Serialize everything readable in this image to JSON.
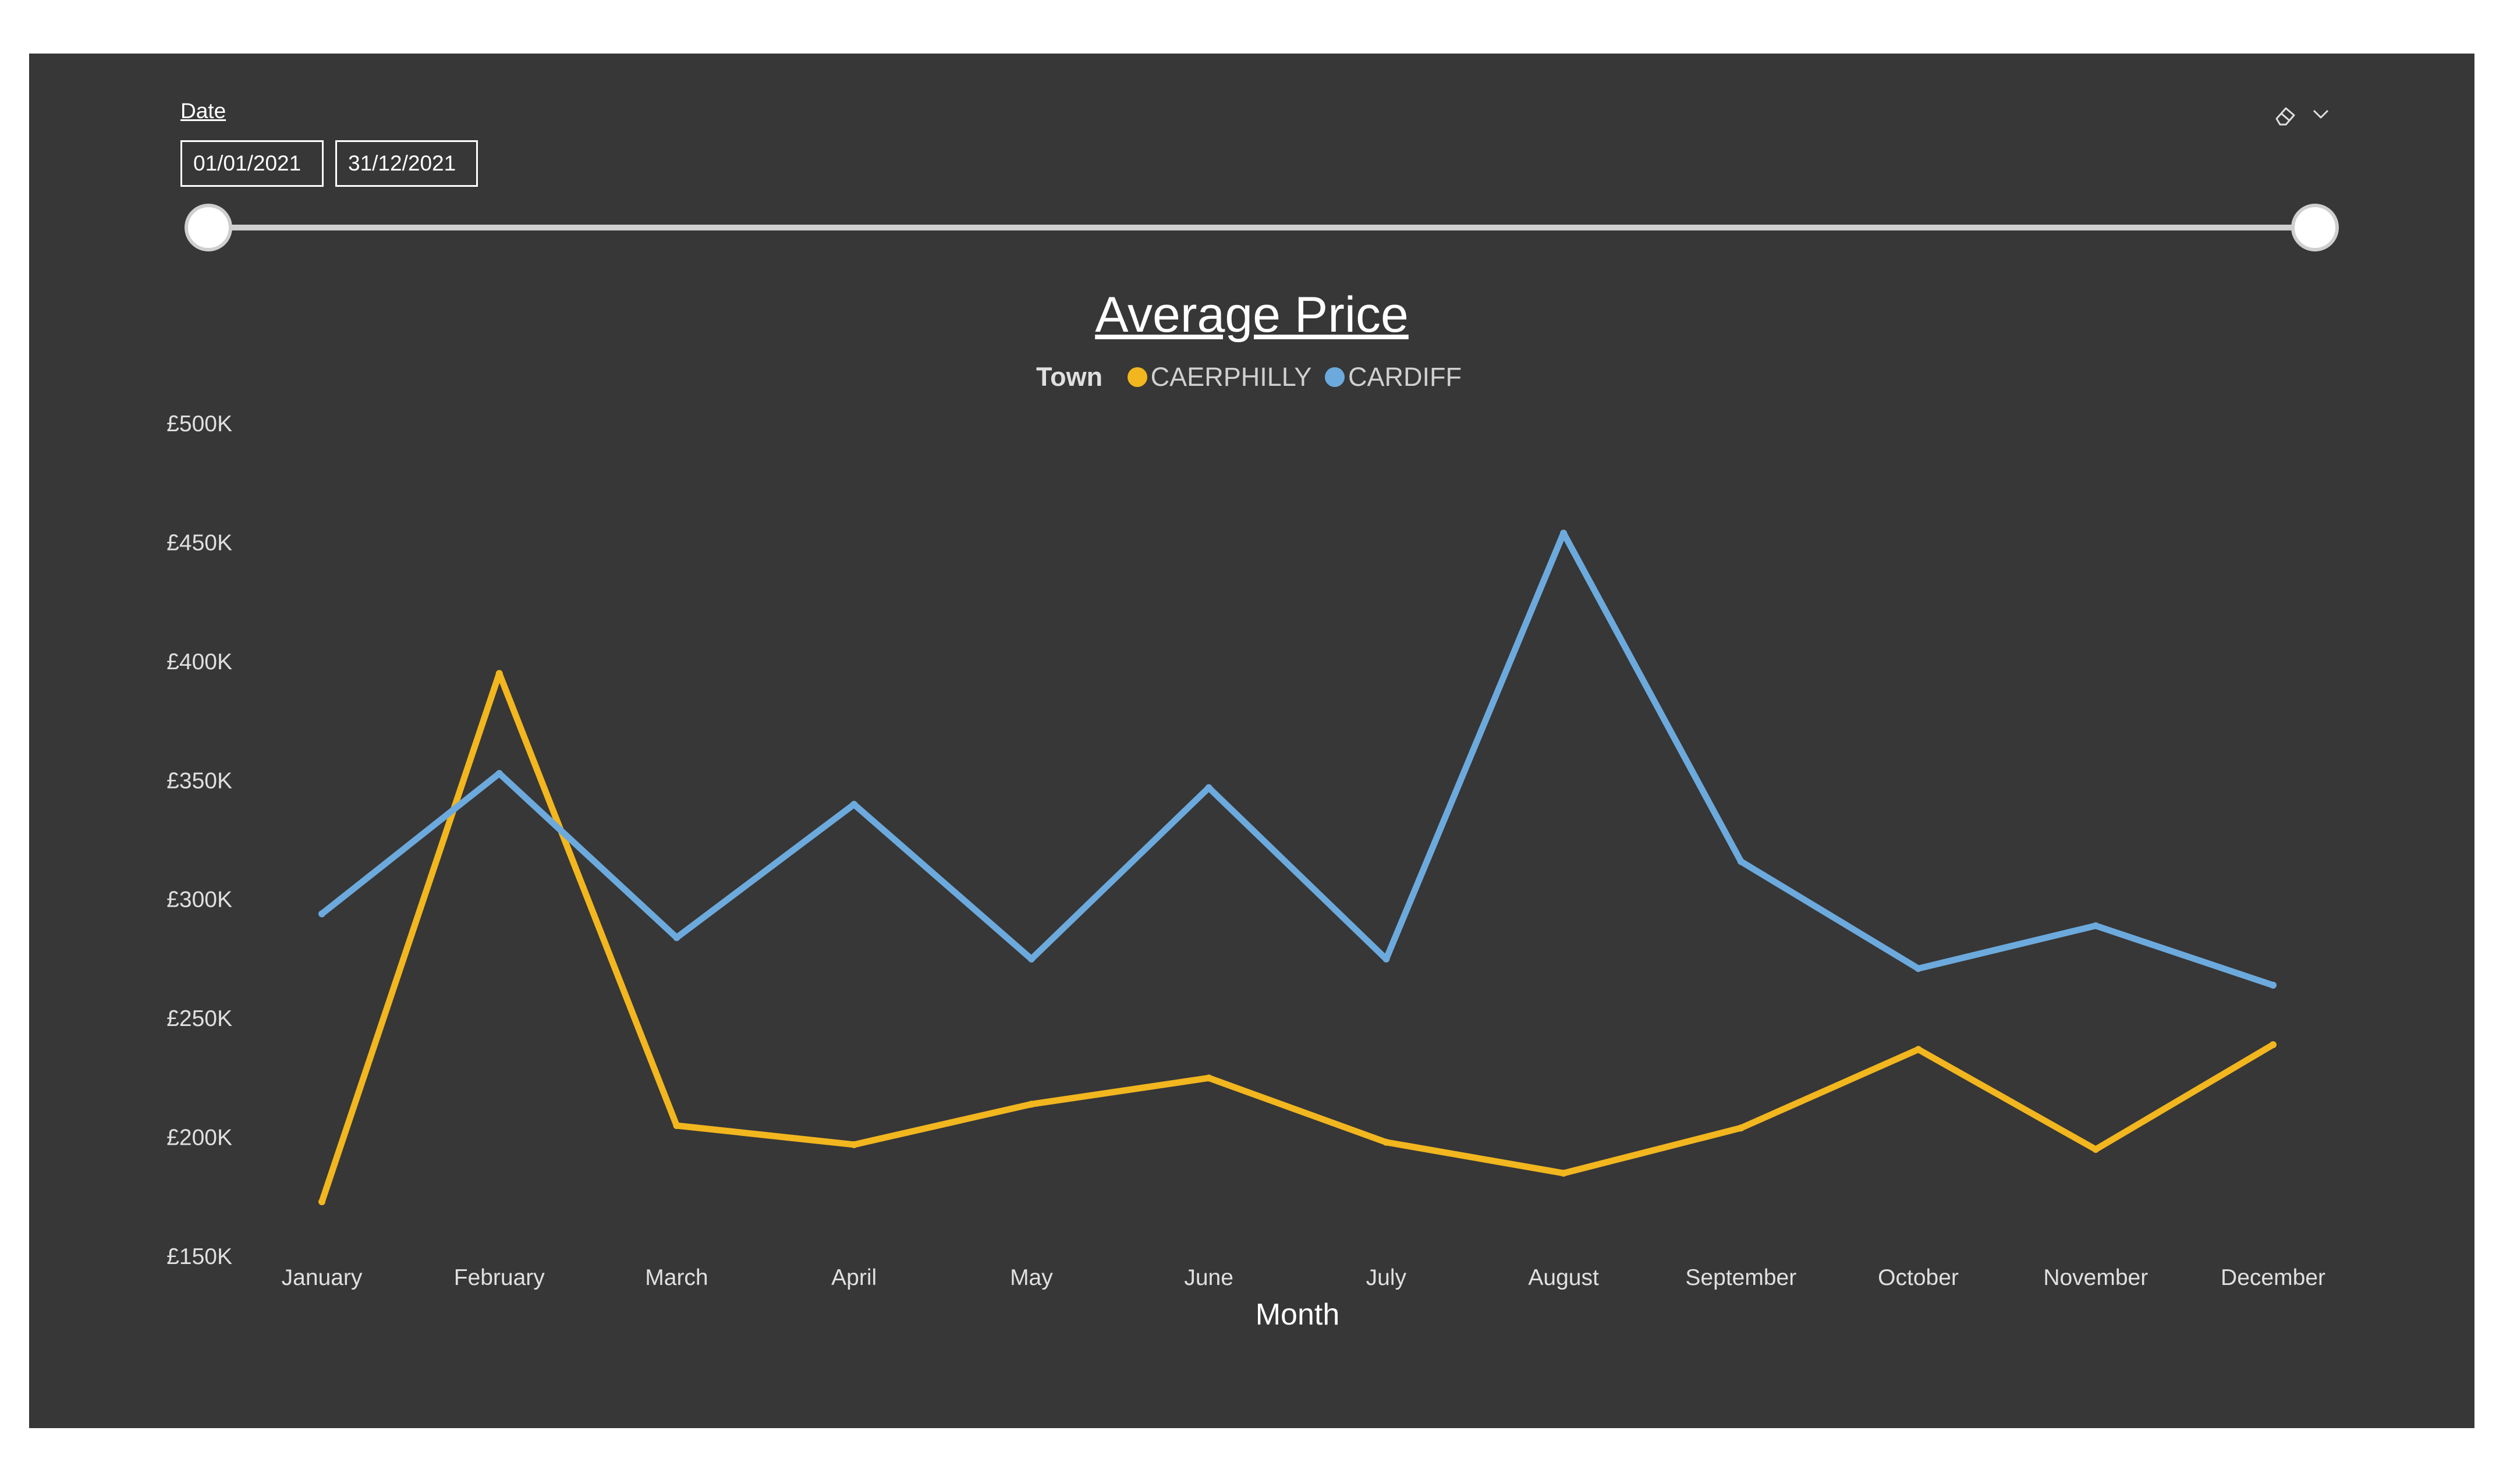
{
  "slicer": {
    "label": "Date",
    "start_date": "01/01/2021",
    "end_date": "31/12/2021",
    "icons": [
      "eraser-icon",
      "chevron-down-icon"
    ]
  },
  "chart_data": {
    "type": "line",
    "title": "Average Price",
    "legend_title": "Town",
    "legend_position": "top-center",
    "xlabel": "Month",
    "ylabel": "",
    "categories": [
      "January",
      "February",
      "March",
      "April",
      "May",
      "June",
      "July",
      "August",
      "September",
      "October",
      "November",
      "December"
    ],
    "ylim": [
      150000,
      500000
    ],
    "yticks": [
      150000,
      200000,
      250000,
      300000,
      350000,
      400000,
      450000,
      500000
    ],
    "ytick_labels": [
      "£150K",
      "£200K",
      "£250K",
      "£300K",
      "£350K",
      "£400K",
      "£450K",
      "£500K"
    ],
    "grid": false,
    "series": [
      {
        "name": "CAERPHILLY",
        "color": "#F2B61E",
        "values": [
          173000,
          395000,
          205000,
          197000,
          214000,
          225000,
          198000,
          185000,
          204000,
          237000,
          195000,
          239000
        ]
      },
      {
        "name": "CARDIFF",
        "color": "#6CAADD",
        "values": [
          294000,
          353000,
          284000,
          340000,
          275000,
          347000,
          275000,
          454000,
          316000,
          271000,
          289000,
          264000
        ]
      }
    ]
  }
}
